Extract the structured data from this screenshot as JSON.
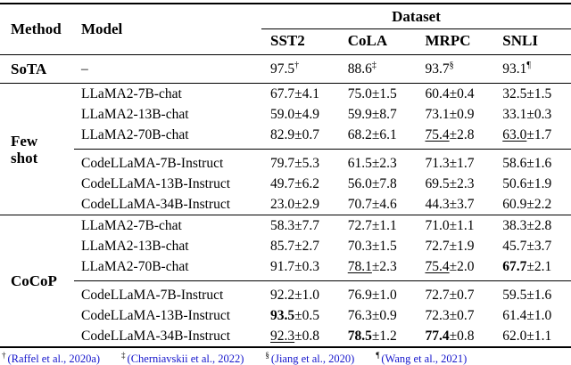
{
  "colors": {
    "citation": "#1414cc",
    "text": "#000000",
    "rule": "#000000",
    "background": "#ffffff"
  },
  "table": {
    "header": {
      "method": "Method",
      "model": "Model",
      "dataset_group": "Dataset",
      "datasets": [
        "SST2",
        "CoLA",
        "MRPC",
        "SNLI"
      ]
    },
    "sota": {
      "method": "SoTA",
      "model": "–",
      "cells": [
        {
          "val": "97.5",
          "sup": "†"
        },
        {
          "val": "88.6",
          "sup": "‡"
        },
        {
          "val": "93.7",
          "sup": "§"
        },
        {
          "val": "93.1",
          "sup": "¶"
        }
      ]
    },
    "fewshot": {
      "label_lines": [
        "Few",
        "shot"
      ],
      "rows": [
        {
          "model": "LLaMA2-7B-chat",
          "c": [
            {
              "val": "67.7",
              "pm": "±4.1"
            },
            {
              "val": "75.0",
              "pm": "±1.5"
            },
            {
              "val": "60.4",
              "pm": "±0.4"
            },
            {
              "val": "32.5",
              "pm": "±1.5"
            }
          ]
        },
        {
          "model": "LLaMA2-13B-chat",
          "c": [
            {
              "val": "59.0",
              "pm": "±4.9"
            },
            {
              "val": "59.9",
              "pm": "±8.7"
            },
            {
              "val": "73.1",
              "pm": "±0.9"
            },
            {
              "val": "33.1",
              "pm": "±0.3"
            }
          ]
        },
        {
          "model": "LLaMA2-70B-chat",
          "c": [
            {
              "val": "82.9",
              "pm": "±0.7"
            },
            {
              "val": "68.2",
              "pm": "±6.1"
            },
            {
              "val": "75.4",
              "pm": "±2.8",
              "emph": "underline"
            },
            {
              "val": "63.0",
              "pm": "±1.7",
              "emph": "underline"
            }
          ]
        },
        {
          "model": "CodeLLaMA-7B-Instruct",
          "c": [
            {
              "val": "79.7",
              "pm": "±5.3"
            },
            {
              "val": "61.5",
              "pm": "±2.3"
            },
            {
              "val": "71.3",
              "pm": "±1.7"
            },
            {
              "val": "58.6",
              "pm": "±1.6"
            }
          ]
        },
        {
          "model": "CodeLLaMA-13B-Instruct",
          "c": [
            {
              "val": "49.7",
              "pm": "±6.2"
            },
            {
              "val": "56.0",
              "pm": "±7.8"
            },
            {
              "val": "69.5",
              "pm": "±2.3"
            },
            {
              "val": "50.6",
              "pm": "±1.9"
            }
          ]
        },
        {
          "model": "CodeLLaMA-34B-Instruct",
          "c": [
            {
              "val": "23.0",
              "pm": "±2.9"
            },
            {
              "val": "70.7",
              "pm": "±4.6"
            },
            {
              "val": "44.3",
              "pm": "±3.7"
            },
            {
              "val": "60.9",
              "pm": "±2.2"
            }
          ]
        }
      ]
    },
    "cocop": {
      "label_lines": [
        "CoCoP"
      ],
      "rows": [
        {
          "model": "LLaMA2-7B-chat",
          "c": [
            {
              "val": "58.3",
              "pm": "±7.7"
            },
            {
              "val": "72.7",
              "pm": "±1.1"
            },
            {
              "val": "71.0",
              "pm": "±1.1"
            },
            {
              "val": "38.3",
              "pm": "±2.8"
            }
          ]
        },
        {
          "model": "LLaMA2-13B-chat",
          "c": [
            {
              "val": "85.7",
              "pm": "±2.7"
            },
            {
              "val": "70.3",
              "pm": "±1.5"
            },
            {
              "val": "72.7",
              "pm": "±1.9"
            },
            {
              "val": "45.7",
              "pm": "±3.7"
            }
          ]
        },
        {
          "model": "LLaMA2-70B-chat",
          "c": [
            {
              "val": "91.7",
              "pm": "±0.3"
            },
            {
              "val": "78.1",
              "pm": "±2.3",
              "emph": "underline"
            },
            {
              "val": "75.4",
              "pm": "±2.0",
              "emph": "underline"
            },
            {
              "val": "67.7",
              "pm": "±2.1",
              "emph": "bold"
            }
          ]
        },
        {
          "model": "CodeLLaMA-7B-Instruct",
          "c": [
            {
              "val": "92.2",
              "pm": "±1.0"
            },
            {
              "val": "76.9",
              "pm": "±1.0"
            },
            {
              "val": "72.7",
              "pm": "±0.7"
            },
            {
              "val": "59.5",
              "pm": "±1.6"
            }
          ]
        },
        {
          "model": "CodeLLaMA-13B-Instruct",
          "c": [
            {
              "val": "93.5",
              "pm": "±0.5",
              "emph": "bold"
            },
            {
              "val": "76.3",
              "pm": "±0.9"
            },
            {
              "val": "72.3",
              "pm": "±0.7"
            },
            {
              "val": "61.4",
              "pm": "±1.0"
            }
          ]
        },
        {
          "model": "CodeLLaMA-34B-Instruct",
          "c": [
            {
              "val": "92.3",
              "pm": "±0.8",
              "emph": "underline"
            },
            {
              "val": "78.5",
              "pm": "±1.2",
              "emph": "bold"
            },
            {
              "val": "77.4",
              "pm": "±0.8",
              "emph": "bold"
            },
            {
              "val": "62.0",
              "pm": "±1.1"
            }
          ]
        }
      ]
    }
  },
  "footnotes": [
    {
      "sym": "†",
      "cite": "(Raffel et al., 2020a)"
    },
    {
      "sym": "‡",
      "cite": "(Cherniavskii et al., 2022)"
    },
    {
      "sym": "§",
      "cite": "(Jiang et al., 2020)"
    },
    {
      "sym": "¶",
      "cite": "(Wang et al., 2021)"
    }
  ]
}
